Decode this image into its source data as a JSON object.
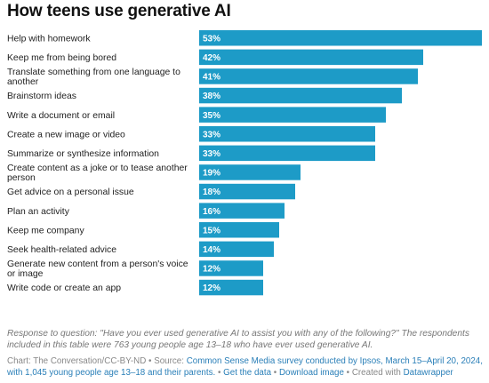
{
  "title": "How teens use generative AI",
  "chart_data": {
    "type": "bar",
    "orientation": "horizontal",
    "categories": [
      "Help with homework",
      "Keep me from being bored",
      "Translate something from one language to another",
      "Brainstorm ideas",
      "Write a document or email",
      "Create a new image or video",
      "Summarize or synthesize information",
      "Create content as a joke or to tease another person",
      "Get advice on a personal issue",
      "Plan an activity",
      "Keep me company",
      "Seek health-related advice",
      "Generate new content from a person's voice or image",
      "Write code or create an app"
    ],
    "category_lines": [
      [
        "Help with homework"
      ],
      [
        "Keep me from being bored"
      ],
      [
        "Translate something from one language to",
        "another"
      ],
      [
        "Brainstorm ideas"
      ],
      [
        "Write a document or email"
      ],
      [
        "Create a new image or video"
      ],
      [
        "Summarize or synthesize information"
      ],
      [
        "Create content as a joke or to tease another",
        "person"
      ],
      [
        "Get advice on a personal issue"
      ],
      [
        "Plan an activity"
      ],
      [
        "Keep me company"
      ],
      [
        "Seek health-related advice"
      ],
      [
        "Generate new content from a person's voice",
        "or image"
      ],
      [
        "Write code or create an app"
      ]
    ],
    "values": [
      53,
      42,
      41,
      38,
      35,
      33,
      33,
      19,
      18,
      16,
      15,
      14,
      12,
      12
    ],
    "value_labels": [
      "53%",
      "42%",
      "41%",
      "38%",
      "35%",
      "33%",
      "33%",
      "19%",
      "18%",
      "16%",
      "15%",
      "14%",
      "12%",
      "12%"
    ],
    "xlim": [
      0,
      53
    ],
    "bar_color": "#1d9bc7",
    "grid": false
  },
  "note": "Response to question: \"Have you ever used generative AI to assist you with any of the following?\" The respondents included in this table were 763 young people age 13–18 who have ever used generative AI.",
  "footer": {
    "credit": "Chart: The Conversation/CC-BY-ND",
    "source_prefix": "Source:",
    "source_link": "Common Sense Media survey conducted by Ipsos, March 15–April 20, 2024, with 1,045 young people age 13–18 and their parents.",
    "get_data": "Get the data",
    "download_image": "Download image",
    "created_prefix": "Created with",
    "created_link": "Datawrapper",
    "separator": "•"
  },
  "colors": {
    "link": "#2a7fb8",
    "note": "#777777"
  }
}
